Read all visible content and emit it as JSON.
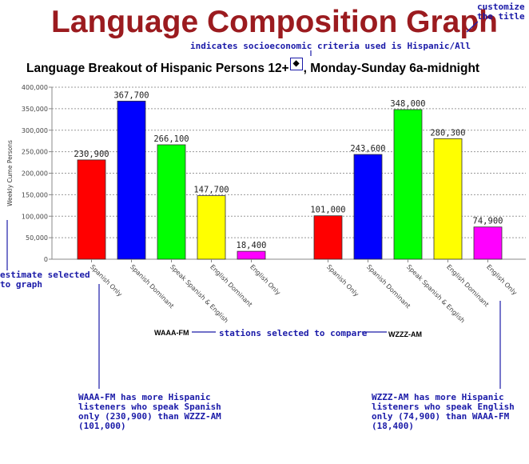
{
  "page": {
    "title": "Language Composition Graph",
    "subtitle_part1": "Language Breakout of Hispanic Persons 12+",
    "subtitle_part2": ", Monday-Sunday 6a-midnight",
    "criteria_icon": "diamond-icon"
  },
  "annotations": {
    "customize_line1": "customize",
    "customize_line2": "the title",
    "criteria_note": "indicates socioeconomic criteria used is Hispanic/All",
    "estimate_line1": "estimate selected",
    "estimate_line2": "to graph",
    "compare_note": "stations selected to compare",
    "left_note": [
      "WAAA-FM has more Hispanic",
      "listeners who speak Spanish",
      "only (230,900) than WZZZ-AM",
      "(101,000)"
    ],
    "right_note": [
      "WZZZ-AM has more Hispanic",
      "listeners who speak English",
      "only (74,900) than WAAA-FM",
      "(18,400)"
    ]
  },
  "stations": {
    "left": "WAAA-FM",
    "right": "WZZZ-AM"
  },
  "chart_data": {
    "type": "bar",
    "ylabel": "Weekly Cume Persons",
    "ylim": [
      0,
      400000
    ],
    "yticks": [
      "0",
      "50,000",
      "100,000",
      "150,000",
      "200,000",
      "250,000",
      "300,000",
      "350,000",
      "400,000"
    ],
    "categories": [
      "Spanish Only",
      "Spanish Dominant",
      "Speak Spanish & English",
      "English Dominant",
      "English Only"
    ],
    "colors": [
      "#ff0000",
      "#0000ff",
      "#00ff00",
      "#ffff00",
      "#ff00ff"
    ],
    "grid": true,
    "groups": [
      {
        "station": "WAAA-FM",
        "values": [
          230900,
          367700,
          266100,
          147700,
          18400
        ],
        "labels": [
          "230,900",
          "367,700",
          "266,100",
          "147,700",
          "18,400"
        ]
      },
      {
        "station": "WZZZ-AM",
        "values": [
          101000,
          243600,
          348000,
          280300,
          74900
        ],
        "labels": [
          "101,000",
          "243,600",
          "348,000",
          "280,300",
          "74,900"
        ]
      }
    ]
  }
}
